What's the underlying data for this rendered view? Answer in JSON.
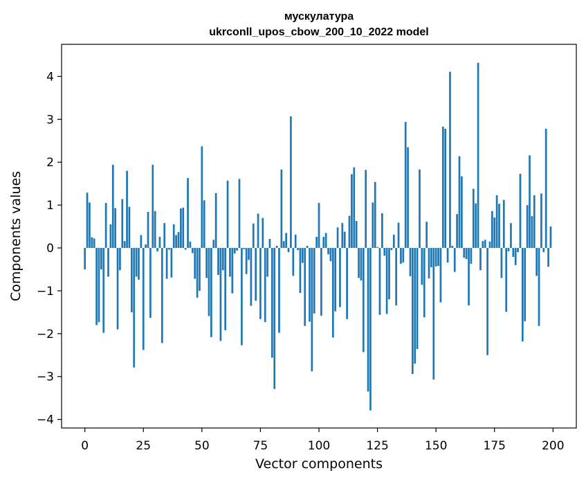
{
  "chart_data": {
    "type": "bar",
    "title": "мускулатура",
    "subtitle": "ukrconll_upos_cbow_200_10_2022 model",
    "xlabel": "Vector components",
    "ylabel": "Components values",
    "xlim": [
      -9.95,
      209.95
    ],
    "ylim": [
      -4.2,
      4.75
    ],
    "xticks": [
      0,
      25,
      50,
      75,
      100,
      125,
      150,
      175,
      200
    ],
    "xtick_labels": [
      "0",
      "25",
      "50",
      "75",
      "100",
      "125",
      "150",
      "175",
      "200"
    ],
    "yticks": [
      -4,
      -3,
      -2,
      -1,
      0,
      1,
      2,
      3,
      4
    ],
    "ytick_labels": [
      "−4",
      "−3",
      "−2",
      "−1",
      "0",
      "1",
      "2",
      "3",
      "4"
    ],
    "bar_color": "#1f77b4",
    "grid": false,
    "legend": false,
    "x": [
      0,
      1,
      2,
      3,
      4,
      5,
      6,
      7,
      8,
      9,
      10,
      11,
      12,
      13,
      14,
      15,
      16,
      17,
      18,
      19,
      20,
      21,
      22,
      23,
      24,
      25,
      26,
      27,
      28,
      29,
      30,
      31,
      32,
      33,
      34,
      35,
      36,
      37,
      38,
      39,
      40,
      41,
      42,
      43,
      44,
      45,
      46,
      47,
      48,
      49,
      50,
      51,
      52,
      53,
      54,
      55,
      56,
      57,
      58,
      59,
      60,
      61,
      62,
      63,
      64,
      65,
      66,
      67,
      68,
      69,
      70,
      71,
      72,
      73,
      74,
      75,
      76,
      77,
      78,
      79,
      80,
      81,
      82,
      83,
      84,
      85,
      86,
      87,
      88,
      89,
      90,
      91,
      92,
      93,
      94,
      95,
      96,
      97,
      98,
      99,
      100,
      101,
      102,
      103,
      104,
      105,
      106,
      107,
      108,
      109,
      110,
      111,
      112,
      113,
      114,
      115,
      116,
      117,
      118,
      119,
      120,
      121,
      122,
      123,
      124,
      125,
      126,
      127,
      128,
      129,
      130,
      131,
      132,
      133,
      134,
      135,
      136,
      137,
      138,
      139,
      140,
      141,
      142,
      143,
      144,
      145,
      146,
      147,
      148,
      149,
      150,
      151,
      152,
      153,
      154,
      155,
      156,
      157,
      158,
      159,
      160,
      161,
      162,
      163,
      164,
      165,
      166,
      167,
      168,
      169,
      170,
      171,
      172,
      173,
      174,
      175,
      176,
      177,
      178,
      179,
      180,
      181,
      182,
      183,
      184,
      185,
      186,
      187,
      188,
      189,
      190,
      191,
      192,
      193,
      194,
      195,
      196,
      197,
      198,
      199
    ],
    "values": [
      -0.5,
      1.29,
      1.06,
      0.25,
      0.22,
      -1.8,
      -1.73,
      -0.5,
      -1.98,
      1.05,
      -0.67,
      0.55,
      1.94,
      0.93,
      -1.9,
      -0.52,
      1.14,
      0.16,
      1.8,
      0.96,
      -1.5,
      -2.79,
      -0.67,
      -0.74,
      0.3,
      -2.38,
      0.08,
      0.84,
      -1.63,
      1.94,
      0.86,
      -0.08,
      0.26,
      -2.22,
      0.58,
      -0.72,
      -0.04,
      -0.69,
      0.55,
      0.3,
      0.37,
      0.92,
      0.94,
      -0.04,
      1.63,
      0.15,
      -0.12,
      -0.72,
      -1.16,
      -1.0,
      2.37,
      1.11,
      -0.7,
      -1.59,
      -2.08,
      0.19,
      1.28,
      -0.63,
      -2.17,
      -0.52,
      -1.92,
      1.57,
      -0.67,
      -1.06,
      -0.13,
      -0.06,
      1.61,
      -2.27,
      -0.03,
      -0.61,
      -0.28,
      -1.35,
      0.57,
      -1.23,
      0.8,
      -1.66,
      0.7,
      -1.73,
      -0.67,
      0.21,
      -2.56,
      -3.29,
      0.05,
      -1.98,
      1.83,
      0.16,
      0.35,
      -0.1,
      3.07,
      -0.65,
      0.31,
      -0.05,
      -1.05,
      -0.35,
      -1.82,
      0.05,
      -1.72,
      -2.88,
      -1.53,
      0.26,
      1.05,
      -1.58,
      0.26,
      0.35,
      -0.15,
      -0.31,
      -2.09,
      -1.48,
      0.48,
      -1.38,
      0.58,
      0.38,
      -1.66,
      0.75,
      1.72,
      1.88,
      0.63,
      -0.7,
      -0.76,
      -2.43,
      1.82,
      -3.35,
      -3.79,
      1.06,
      1.54,
      0.02,
      -1.56,
      0.81,
      -0.18,
      -1.54,
      -1.2,
      -0.05,
      0.31,
      -1.34,
      0.59,
      -0.37,
      -0.34,
      2.94,
      2.35,
      -0.66,
      -2.94,
      -2.7,
      -2.36,
      1.83,
      -0.86,
      -1.62,
      0.61,
      -0.71,
      -0.45,
      -3.07,
      -0.43,
      -0.42,
      -1.27,
      2.83,
      2.78,
      -0.34,
      4.11,
      0.05,
      -0.56,
      0.79,
      2.14,
      1.67,
      -0.23,
      -0.26,
      -1.34,
      -0.37,
      1.38,
      1.04,
      4.32,
      -0.52,
      0.16,
      0.19,
      -2.5,
      0.15,
      0.86,
      0.71,
      1.23,
      1.03,
      -0.7,
      1.12,
      -1.49,
      -0.08,
      0.58,
      -0.21,
      -0.4,
      -0.1,
      1.73,
      -2.18,
      -1.71,
      1.0,
      2.16,
      0.74,
      1.23,
      -0.65,
      -1.82,
      1.27,
      -0.1,
      2.78,
      -0.44,
      0.5
    ]
  }
}
